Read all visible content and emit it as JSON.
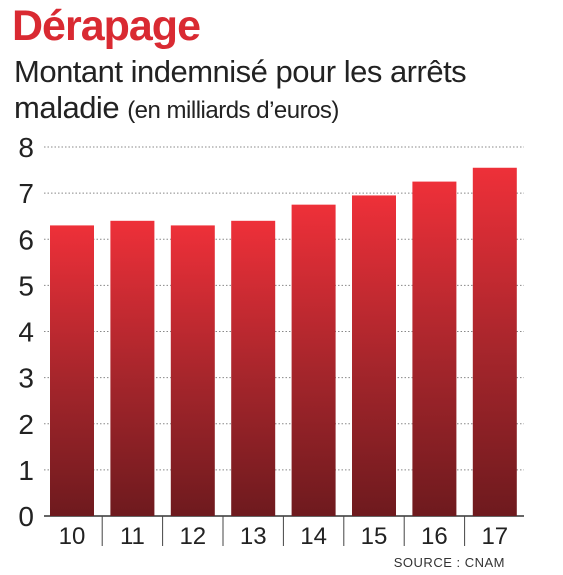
{
  "title": "Dérapage",
  "subtitle_main": "Montant indemnisé pour les arrêts maladie",
  "subtitle_unit": "(en milliards d’euros)",
  "source": "SOURCE : CNAM",
  "colors": {
    "title": "#d92a32",
    "bar_top": "#ee3039",
    "bar_bottom": "#6e1a1e",
    "grid": "#888888"
  },
  "chart_data": {
    "type": "bar",
    "categories": [
      "10",
      "11",
      "12",
      "13",
      "14",
      "15",
      "16",
      "17"
    ],
    "values": [
      6.3,
      6.4,
      6.3,
      6.4,
      6.75,
      6.95,
      7.25,
      7.55
    ],
    "ylim": [
      0,
      8
    ],
    "yticks": [
      0,
      1,
      2,
      3,
      4,
      5,
      6,
      7,
      8
    ],
    "grid": true,
    "title": "Dérapage",
    "xlabel": "",
    "ylabel": ""
  }
}
